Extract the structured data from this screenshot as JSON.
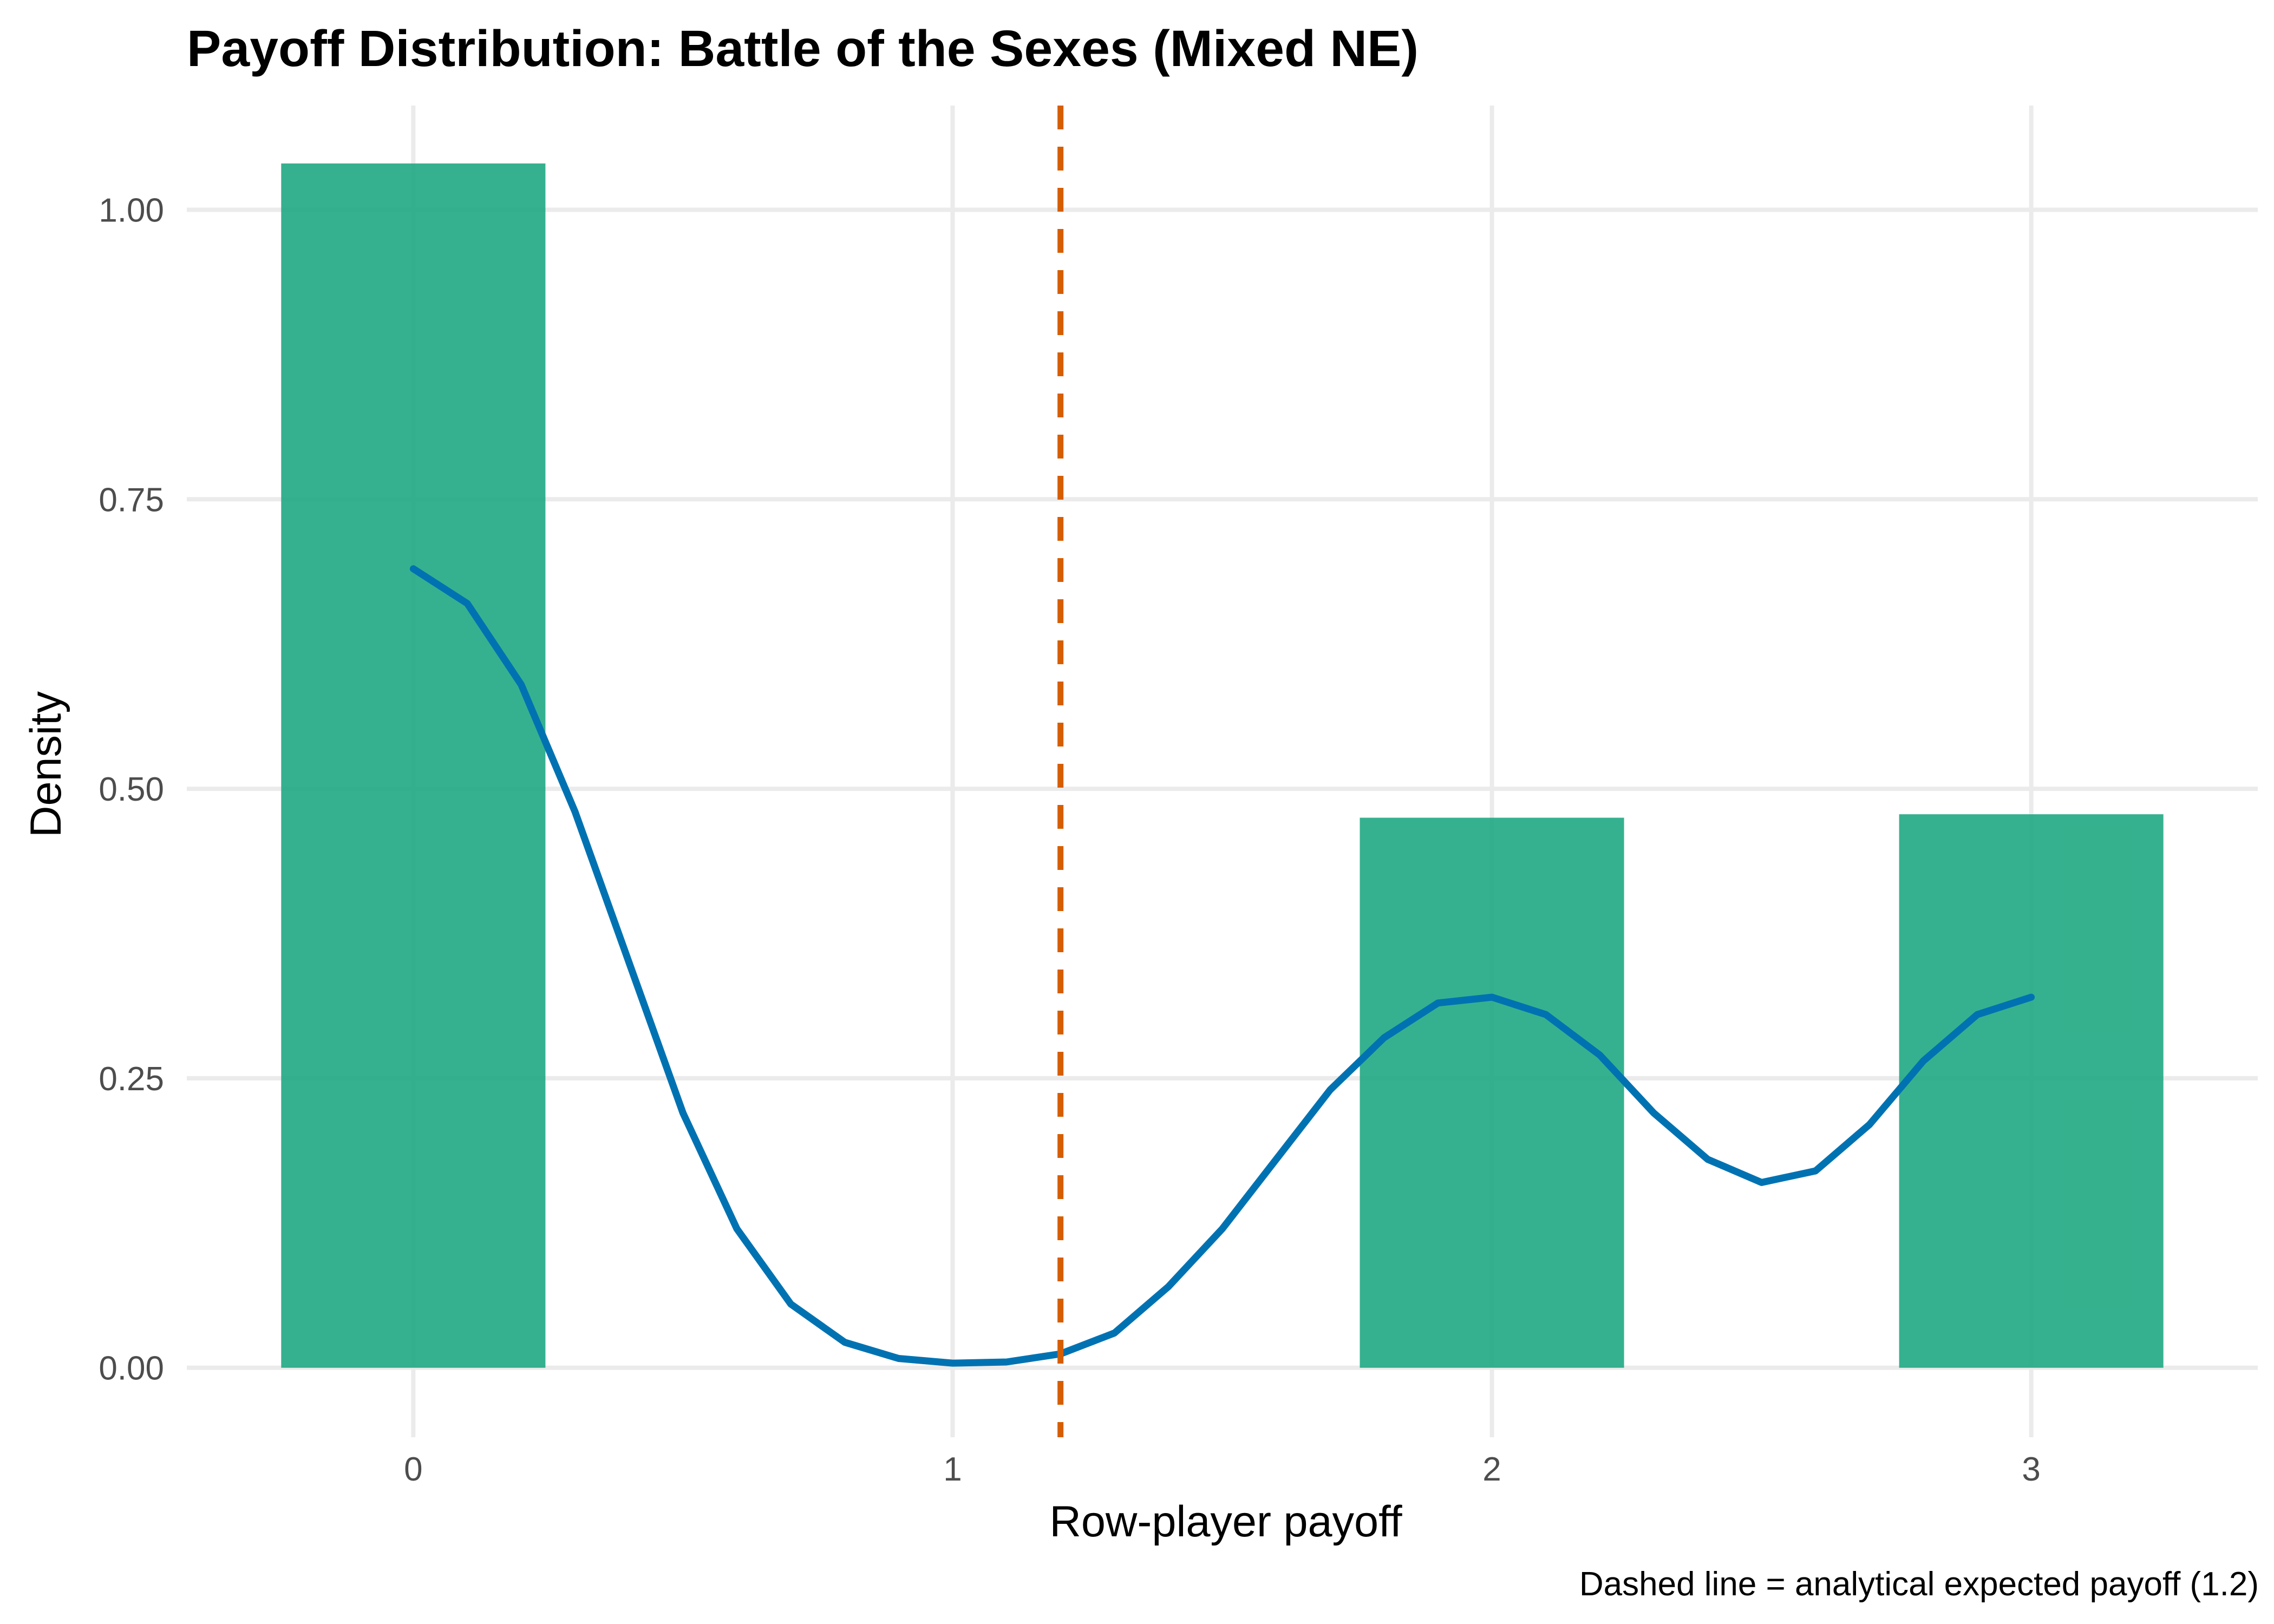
{
  "chart_data": {
    "type": "bar",
    "title": "Payoff Distribution: Battle of the Sexes (Mixed NE)",
    "xlabel": "Row-player payoff",
    "ylabel": "Density",
    "caption": "Dashed line = analytical expected payoff (1.2)",
    "xlim": [
      -0.42,
      3.42
    ],
    "ylim": [
      -0.06,
      1.09
    ],
    "x_ticks": [
      0,
      1,
      2,
      3
    ],
    "x_tick_labels": [
      "0",
      "1",
      "2",
      "3"
    ],
    "y_ticks": [
      0,
      0.25,
      0.5,
      0.75,
      1.0
    ],
    "y_tick_labels": [
      "0.00",
      "0.25",
      "0.50",
      "0.75",
      "1.00"
    ],
    "grid": true,
    "bar_width": 0.49,
    "bars": [
      {
        "x": 0,
        "density": 1.04
      },
      {
        "x": 2,
        "density": 0.475
      },
      {
        "x": 3,
        "density": 0.478
      }
    ],
    "density_curve": {
      "x": [
        0,
        0.1,
        0.2,
        0.3,
        0.4,
        0.5,
        0.6,
        0.7,
        0.8,
        0.9,
        1.0,
        1.1,
        1.2,
        1.3,
        1.4,
        1.5,
        1.6,
        1.7,
        1.8,
        1.9,
        2.0,
        2.1,
        2.2,
        2.3,
        2.4,
        2.5,
        2.6,
        2.7,
        2.8,
        2.9,
        3.0
      ],
      "y": [
        0.69,
        0.66,
        0.59,
        0.48,
        0.35,
        0.22,
        0.12,
        0.055,
        0.022,
        0.008,
        0.004,
        0.005,
        0.012,
        0.03,
        0.07,
        0.12,
        0.18,
        0.24,
        0.285,
        0.315,
        0.32,
        0.305,
        0.27,
        0.22,
        0.18,
        0.16,
        0.17,
        0.21,
        0.265,
        0.305,
        0.32
      ]
    },
    "reference_line": {
      "x": 1.2
    },
    "colors": {
      "bars": "#1aa67f",
      "curve": "#0072b2",
      "reference_line": "#d55e00"
    }
  }
}
